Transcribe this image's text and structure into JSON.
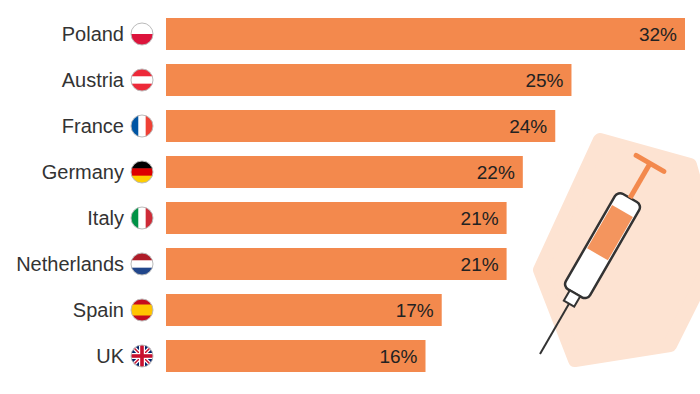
{
  "chart_data": {
    "type": "bar",
    "orientation": "horizontal",
    "categories": [
      "Poland",
      "Austria",
      "France",
      "Germany",
      "Italy",
      "Netherlands",
      "Spain",
      "UK"
    ],
    "values": [
      32,
      25,
      24,
      22,
      21,
      21,
      17,
      16
    ],
    "value_labels": [
      "32%",
      "25%",
      "24%",
      "22%",
      "21%",
      "21%",
      "17%",
      "16%"
    ],
    "color": "#f3894d",
    "xlim": [
      0,
      32
    ],
    "data_labels": true,
    "tick_labels": "y",
    "grid": false
  }
}
